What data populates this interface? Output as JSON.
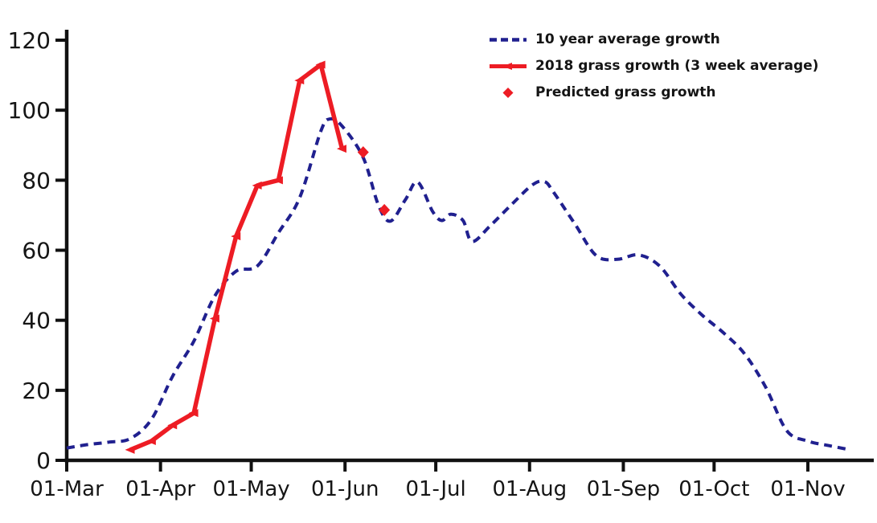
{
  "chart_data": {
    "type": "line",
    "title": "",
    "xlabel": "",
    "ylabel": "",
    "grid": false,
    "legend_position": "top-right",
    "axis_color": "#111111",
    "y_axis": {
      "range": [
        0,
        120
      ],
      "ticks": [
        0,
        20,
        40,
        60,
        80,
        100,
        120
      ]
    },
    "x_axis": {
      "unit": "date",
      "tick_labels": [
        "01-Mar",
        "01-Apr",
        "01-May",
        "01-Jun",
        "01-Jul",
        "01-Aug",
        "01-Sep",
        "01-Oct",
        "01-Nov"
      ],
      "tick_days": [
        0,
        31,
        61,
        92,
        122,
        153,
        184,
        214,
        245
      ],
      "range_days": [
        0,
        266
      ]
    },
    "series": [
      {
        "name": "10 year average growth",
        "color": "#20208f",
        "line_style": "dashed",
        "marker": "none",
        "points": [
          [
            0,
            3.5
          ],
          [
            7,
            4.5
          ],
          [
            14,
            5.2
          ],
          [
            21,
            6.2
          ],
          [
            28,
            11.7
          ],
          [
            35,
            24
          ],
          [
            42,
            34
          ],
          [
            49,
            47
          ],
          [
            56,
            54
          ],
          [
            63,
            55.5
          ],
          [
            70,
            65
          ],
          [
            77,
            75
          ],
          [
            84,
            94
          ],
          [
            87,
            97.5
          ],
          [
            91,
            95.5
          ],
          [
            98,
            86.5
          ],
          [
            103,
            73
          ],
          [
            107,
            68.3
          ],
          [
            112,
            74.5
          ],
          [
            116,
            79.5
          ],
          [
            121,
            71
          ],
          [
            124,
            68.5
          ],
          [
            127,
            70.3
          ],
          [
            131,
            68.5
          ],
          [
            134,
            62.5
          ],
          [
            140,
            67
          ],
          [
            147,
            73
          ],
          [
            154,
            78.7
          ],
          [
            158,
            79.6
          ],
          [
            161,
            76.5
          ],
          [
            168,
            67.5
          ],
          [
            175,
            58.5
          ],
          [
            182,
            57.4
          ],
          [
            189,
            58.7
          ],
          [
            196,
            55.5
          ],
          [
            203,
            47.5
          ],
          [
            210,
            41.5
          ],
          [
            217,
            36.5
          ],
          [
            224,
            30.5
          ],
          [
            231,
            21
          ],
          [
            238,
            8.5
          ],
          [
            245,
            5.5
          ],
          [
            252,
            4.2
          ],
          [
            259,
            3
          ]
        ]
      },
      {
        "name": "2018 grass growth (3 week average)",
        "color": "#ed1c24",
        "line_style": "solid",
        "marker": "triangle",
        "points": [
          [
            21,
            3
          ],
          [
            28,
            5.5
          ],
          [
            35,
            10
          ],
          [
            42,
            13.5
          ],
          [
            49,
            40.5
          ],
          [
            56,
            64
          ],
          [
            63,
            78.5
          ],
          [
            70,
            80
          ],
          [
            77,
            108.5
          ],
          [
            84,
            113
          ],
          [
            91,
            89
          ]
        ]
      },
      {
        "name": "Predicted grass growth",
        "color": "#ed1c24",
        "line_style": "none",
        "marker": "diamond",
        "points": [
          [
            98,
            88
          ],
          [
            105,
            71.5
          ]
        ]
      }
    ]
  }
}
